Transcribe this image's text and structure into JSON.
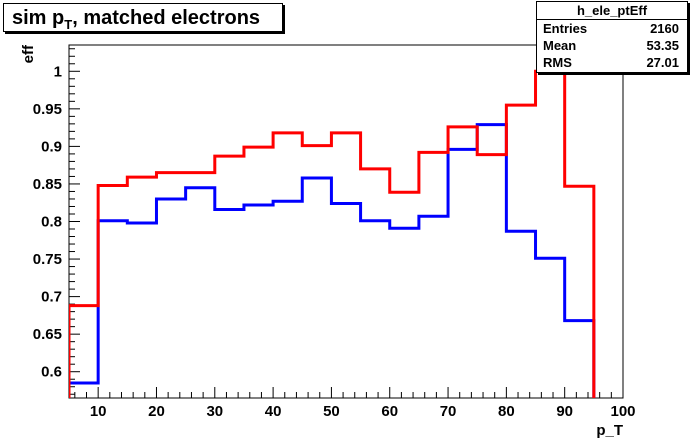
{
  "title": {
    "main": "sim p",
    "sub": "T",
    "rest": ", matched electrons"
  },
  "stats": {
    "name": "h_ele_ptEff",
    "rows": [
      {
        "label": "Entries",
        "value": "2160"
      },
      {
        "label": "Mean",
        "value": "53.35"
      },
      {
        "label": "RMS",
        "value": "27.01"
      }
    ]
  },
  "chart_data": {
    "type": "line",
    "xlabel": "p_T",
    "ylabel": "eff",
    "xlim": [
      5,
      100
    ],
    "ylim": [
      0.565,
      1.035
    ],
    "xticks": [
      10,
      20,
      30,
      40,
      50,
      60,
      70,
      80,
      90,
      100
    ],
    "yticks": [
      0.6,
      0.65,
      0.7,
      0.75,
      0.8,
      0.85,
      0.9,
      0.95,
      1
    ],
    "bin_edges": [
      5,
      10,
      15,
      20,
      25,
      30,
      35,
      40,
      45,
      50,
      55,
      60,
      65,
      70,
      75,
      80,
      85,
      90,
      95
    ],
    "series": [
      {
        "color": "#0000ff",
        "values": [
          0.585,
          0.801,
          0.798,
          0.83,
          0.845,
          0.816,
          0.822,
          0.827,
          0.858,
          0.824,
          0.801,
          0.791,
          0.807,
          0.896,
          0.929,
          0.787,
          0.751,
          0.668
        ]
      },
      {
        "color": "#ff0000",
        "values": [
          0.688,
          0.848,
          0.859,
          0.865,
          0.865,
          0.887,
          0.899,
          0.918,
          0.901,
          0.918,
          0.87,
          0.839,
          0.892,
          0.926,
          0.889,
          0.955,
          1.0,
          0.847
        ]
      }
    ]
  }
}
